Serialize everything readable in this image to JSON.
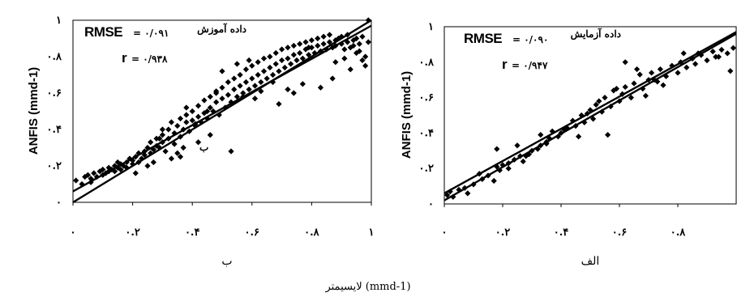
{
  "figure": {
    "x_label": "لایسیمتر (mmd-1)"
  },
  "chart_data": [
    {
      "type": "scatter",
      "panel_label": "ب",
      "title": "داده آموزش",
      "ylabel": "ANFIS (mmd-1)",
      "xlim": [
        0,
        1
      ],
      "ylim": [
        0,
        1
      ],
      "x_ticks": [
        "۰",
        "۰.۲",
        "۰.۴",
        "۰.۶",
        "۰.۸",
        "۱"
      ],
      "y_ticks": [
        "۰",
        "۰.۲",
        "۰.۴",
        "۰.۶",
        "۰.۸",
        "۱"
      ],
      "stats": {
        "rmse_label": "RMSE",
        "rmse_value": "= ۰/۰۹۱",
        "r_label": "r",
        "r_value": "= ۰/۹۳۸"
      },
      "annotation": "ب",
      "lines": [
        {
          "name": "",
          "x": [
            0,
            1
          ],
          "y": [
            0,
            1
          ]
        },
        {
          "name": "",
          "x": [
            0,
            1
          ],
          "y": [
            0.06,
            0.97
          ]
        }
      ],
      "points": {
        "x": [
          0.01,
          0.03,
          0.04,
          0.05,
          0.06,
          0.06,
          0.07,
          0.08,
          0.09,
          0.1,
          0.1,
          0.11,
          0.12,
          0.12,
          0.13,
          0.14,
          0.14,
          0.15,
          0.16,
          0.16,
          0.17,
          0.18,
          0.18,
          0.19,
          0.2,
          0.2,
          0.21,
          0.22,
          0.22,
          0.23,
          0.24,
          0.24,
          0.25,
          0.26,
          0.26,
          0.27,
          0.28,
          0.28,
          0.29,
          0.3,
          0.3,
          0.31,
          0.32,
          0.32,
          0.33,
          0.34,
          0.34,
          0.35,
          0.36,
          0.36,
          0.37,
          0.38,
          0.38,
          0.39,
          0.4,
          0.4,
          0.41,
          0.42,
          0.42,
          0.43,
          0.44,
          0.44,
          0.45,
          0.46,
          0.46,
          0.47,
          0.48,
          0.48,
          0.49,
          0.5,
          0.5,
          0.51,
          0.52,
          0.52,
          0.53,
          0.54,
          0.54,
          0.55,
          0.56,
          0.56,
          0.57,
          0.58,
          0.58,
          0.59,
          0.6,
          0.6,
          0.61,
          0.62,
          0.62,
          0.63,
          0.64,
          0.64,
          0.65,
          0.66,
          0.66,
          0.67,
          0.68,
          0.68,
          0.69,
          0.7,
          0.7,
          0.71,
          0.72,
          0.72,
          0.73,
          0.74,
          0.74,
          0.75,
          0.76,
          0.76,
          0.77,
          0.78,
          0.78,
          0.79,
          0.8,
          0.8,
          0.81,
          0.82,
          0.82,
          0.83,
          0.84,
          0.84,
          0.85,
          0.86,
          0.86,
          0.87,
          0.88,
          0.88,
          0.89,
          0.9,
          0.9,
          0.91,
          0.92,
          0.92,
          0.93,
          0.94,
          0.94,
          0.95,
          0.96,
          0.96,
          0.97,
          0.98,
          0.98,
          0.99,
          0.99,
          0.35,
          0.37,
          0.41,
          0.45,
          0.5,
          0.55,
          0.57,
          0.63,
          0.67,
          0.72,
          0.36,
          0.38,
          0.27,
          0.29,
          0.3,
          0.48,
          0.53,
          0.61,
          0.77,
          0.83,
          0.87,
          0.93,
          0.97,
          0.15,
          0.21,
          0.25,
          0.33,
          0.42,
          0.46,
          0.59,
          0.69,
          0.74,
          0.79,
          0.88,
          0.91,
          0.95
        ],
        "y": [
          0.12,
          0.1,
          0.14,
          0.15,
          0.11,
          0.13,
          0.16,
          0.14,
          0.17,
          0.15,
          0.18,
          0.16,
          0.17,
          0.19,
          0.18,
          0.2,
          0.17,
          0.19,
          0.21,
          0.18,
          0.2,
          0.22,
          0.19,
          0.24,
          0.21,
          0.23,
          0.25,
          0.22,
          0.27,
          0.24,
          0.28,
          0.26,
          0.3,
          0.27,
          0.33,
          0.29,
          0.31,
          0.35,
          0.3,
          0.37,
          0.33,
          0.28,
          0.4,
          0.35,
          0.44,
          0.32,
          0.38,
          0.42,
          0.46,
          0.36,
          0.4,
          0.44,
          0.48,
          0.39,
          0.45,
          0.5,
          0.42,
          0.47,
          0.53,
          0.44,
          0.49,
          0.56,
          0.46,
          0.52,
          0.58,
          0.5,
          0.55,
          0.61,
          0.48,
          0.57,
          0.63,
          0.52,
          0.59,
          0.66,
          0.55,
          0.62,
          0.68,
          0.58,
          0.64,
          0.7,
          0.6,
          0.66,
          0.73,
          0.62,
          0.68,
          0.75,
          0.64,
          0.7,
          0.77,
          0.66,
          0.72,
          0.79,
          0.68,
          0.74,
          0.8,
          0.7,
          0.76,
          0.82,
          0.72,
          0.78,
          0.84,
          0.74,
          0.79,
          0.85,
          0.76,
          0.81,
          0.86,
          0.78,
          0.82,
          0.87,
          0.79,
          0.84,
          0.88,
          0.81,
          0.85,
          0.89,
          0.82,
          0.86,
          0.9,
          0.83,
          0.87,
          0.91,
          0.84,
          0.88,
          0.92,
          0.85,
          0.89,
          0.86,
          0.9,
          0.87,
          0.91,
          0.84,
          0.88,
          0.92,
          0.85,
          0.89,
          0.86,
          0.9,
          0.83,
          0.87,
          0.91,
          0.75,
          0.8,
          0.88,
          1.0,
          0.27,
          0.3,
          0.43,
          0.5,
          0.72,
          0.76,
          0.58,
          0.61,
          0.66,
          0.62,
          0.25,
          0.52,
          0.22,
          0.35,
          0.4,
          0.6,
          0.28,
          0.57,
          0.65,
          0.63,
          0.68,
          0.73,
          0.78,
          0.22,
          0.16,
          0.2,
          0.24,
          0.33,
          0.37,
          0.78,
          0.54,
          0.6,
          0.85,
          0.77,
          0.79,
          0.82
        ]
      }
    },
    {
      "type": "scatter",
      "panel_label": "الف",
      "title": "داده آزمایش",
      "ylabel": "ANFIS (mmd-1)",
      "xlim": [
        0,
        1
      ],
      "ylim": [
        0,
        1
      ],
      "x_ticks": [
        "۰",
        "۰.۲",
        "۰.۴",
        "۰.۶",
        "۰.۸"
      ],
      "y_ticks": [
        "۰",
        "۰.۲",
        "۰.۴",
        "۰.۶",
        "۰.۸",
        "۱"
      ],
      "stats": {
        "rmse_label": "RMSE",
        "rmse_value": "= ۰/۰۹۰",
        "r_label": "r",
        "r_value": "= ۰/۹۴۷"
      },
      "lines": [
        {
          "name": "",
          "x": [
            0,
            1
          ],
          "y": [
            0.02,
            0.96
          ]
        },
        {
          "name": "",
          "x": [
            0,
            1
          ],
          "y": [
            0.06,
            0.97
          ]
        }
      ],
      "points": {
        "x": [
          0.01,
          0.02,
          0.03,
          0.05,
          0.07,
          0.08,
          0.1,
          0.12,
          0.13,
          0.15,
          0.17,
          0.18,
          0.19,
          0.2,
          0.22,
          0.24,
          0.26,
          0.27,
          0.29,
          0.3,
          0.32,
          0.33,
          0.35,
          0.36,
          0.37,
          0.39,
          0.4,
          0.42,
          0.44,
          0.45,
          0.47,
          0.48,
          0.5,
          0.51,
          0.52,
          0.54,
          0.55,
          0.57,
          0.58,
          0.6,
          0.61,
          0.62,
          0.64,
          0.65,
          0.67,
          0.68,
          0.7,
          0.71,
          0.73,
          0.74,
          0.76,
          0.78,
          0.8,
          0.81,
          0.83,
          0.85,
          0.86,
          0.88,
          0.9,
          0.92,
          0.93,
          0.95,
          0.97,
          0.99,
          0.18,
          0.22,
          0.25,
          0.28,
          0.33,
          0.35,
          0.41,
          0.46,
          0.49,
          0.53,
          0.56,
          0.59,
          0.62,
          0.66,
          0.69,
          0.72,
          0.75,
          0.82,
          0.87,
          0.94,
          0.98
        ],
        "y": [
          0.05,
          0.07,
          0.04,
          0.08,
          0.09,
          0.06,
          0.11,
          0.17,
          0.14,
          0.16,
          0.13,
          0.21,
          0.19,
          0.22,
          0.2,
          0.25,
          0.27,
          0.24,
          0.28,
          0.3,
          0.31,
          0.33,
          0.35,
          0.37,
          0.41,
          0.38,
          0.4,
          0.43,
          0.47,
          0.44,
          0.5,
          0.46,
          0.53,
          0.48,
          0.56,
          0.52,
          0.6,
          0.55,
          0.64,
          0.58,
          0.62,
          0.66,
          0.6,
          0.68,
          0.73,
          0.65,
          0.7,
          0.74,
          0.69,
          0.76,
          0.72,
          0.78,
          0.74,
          0.8,
          0.77,
          0.82,
          0.79,
          0.84,
          0.81,
          0.86,
          0.83,
          0.87,
          0.85,
          0.88,
          0.31,
          0.23,
          0.33,
          0.27,
          0.39,
          0.34,
          0.42,
          0.38,
          0.51,
          0.58,
          0.39,
          0.65,
          0.8,
          0.76,
          0.61,
          0.7,
          0.67,
          0.85,
          0.85,
          0.83,
          0.75
        ]
      }
    }
  ]
}
